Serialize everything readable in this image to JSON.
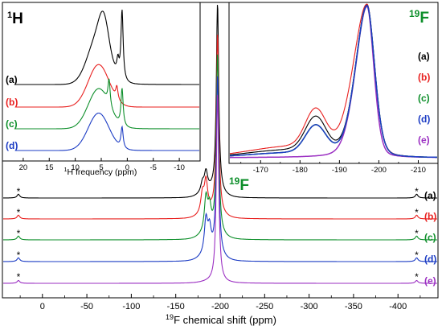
{
  "main": {
    "element_label": "19F",
    "xlabel_prefix": "19",
    "xlabel_text": "F chemical shift (ppm)",
    "x_ticks": [
      "0",
      "-50",
      "-100",
      "-150",
      "-200",
      "-250",
      "-300",
      "-350",
      "-400"
    ],
    "spinning_sideband_marker": "*"
  },
  "inset_1h": {
    "element_label": "1H",
    "xlabel_text": "H frequency (ppm)",
    "x_ticks": [
      "20",
      "15",
      "10",
      "5",
      "0",
      "-5",
      "-10"
    ]
  },
  "inset_19f": {
    "element_label": "19F",
    "x_ticks": [
      "-170",
      "-180",
      "-190",
      "-200",
      "-210"
    ]
  },
  "chart_data": [
    {
      "type": "line",
      "panel": "main",
      "title": "",
      "xlabel": "19F chemical shift (ppm)",
      "ylabel": "",
      "xlim": [
        45,
        -445
      ],
      "x_reversed": true,
      "grid": false,
      "legend": "right of each trace",
      "series": [
        {
          "name": "(a)",
          "color": "#000000",
          "peaks": [
            {
              "x": -197,
              "height": 1.0
            },
            {
              "x": -184,
              "height": 0.1
            },
            {
              "x": -180,
              "height": 0.05
            },
            {
              "x": 27,
              "height": 0.02
            },
            {
              "x": -421,
              "height": 0.02
            }
          ]
        },
        {
          "name": "(b)",
          "color": "#e8201f",
          "peaks": [
            {
              "x": -197,
              "height": 0.95
            },
            {
              "x": -184,
              "height": 0.16
            },
            {
              "x": -180,
              "height": 0.1
            },
            {
              "x": 27,
              "height": 0.02
            },
            {
              "x": -421,
              "height": 0.02
            }
          ]
        },
        {
          "name": "(c)",
          "color": "#0e8f2b",
          "peaks": [
            {
              "x": -197,
              "height": 0.95
            },
            {
              "x": -184,
              "height": 0.18
            },
            {
              "x": -188,
              "height": 0.12
            },
            {
              "x": 27,
              "height": 0.02
            },
            {
              "x": -421,
              "height": 0.02
            }
          ]
        },
        {
          "name": "(d)",
          "color": "#1c3cc4",
          "peaks": [
            {
              "x": -197,
              "height": 0.95
            },
            {
              "x": -184,
              "height": 0.18
            },
            {
              "x": -188,
              "height": 0.12
            },
            {
              "x": 27,
              "height": 0.02
            },
            {
              "x": -421,
              "height": 0.02
            }
          ]
        },
        {
          "name": "(e)",
          "color": "#9b2fc2",
          "peaks": [
            {
              "x": -197,
              "height": 1.0
            },
            {
              "x": 27,
              "height": 0.015
            },
            {
              "x": -421,
              "height": 0.015
            }
          ]
        }
      ]
    },
    {
      "type": "line",
      "panel": "inset 1H",
      "title": "",
      "xlabel": "1H frequency (ppm)",
      "ylabel": "",
      "xlim": [
        24,
        -14
      ],
      "x_reversed": true,
      "grid": false,
      "legend": "left of each trace",
      "series": [
        {
          "name": "(a)",
          "color": "#000000",
          "peaks": [
            {
              "x": 5.5,
              "height": 1.0
            },
            {
              "x": 4.5,
              "height": 0.55
            },
            {
              "x": 1.8,
              "height": 0.3
            },
            {
              "x": 1.0,
              "height": 1.4
            }
          ]
        },
        {
          "name": "(b)",
          "color": "#e8201f",
          "peaks": [
            {
              "x": 5.5,
              "height": 0.85
            },
            {
              "x": 2.0,
              "height": 0.25
            }
          ]
        },
        {
          "name": "(c)",
          "color": "#0e8f2b",
          "peaks": [
            {
              "x": 5.5,
              "height": 0.85
            },
            {
              "x": 3.5,
              "height": 0.55
            },
            {
              "x": 1.0,
              "height": 0.8
            }
          ]
        },
        {
          "name": "(d)",
          "color": "#1c3cc4",
          "peaks": [
            {
              "x": 5.5,
              "height": 0.8
            },
            {
              "x": 1.0,
              "height": 0.45
            }
          ]
        }
      ]
    },
    {
      "type": "line",
      "panel": "inset 19F",
      "title": "",
      "xlabel": "",
      "ylabel": "",
      "xlim": [
        -162,
        -215
      ],
      "x_reversed": true,
      "grid": false,
      "legend": "right of plot",
      "series": [
        {
          "name": "(a)",
          "color": "#000000",
          "peaks": [
            {
              "x": -197,
              "height": 1.0
            },
            {
              "x": -184,
              "height": 0.22
            }
          ]
        },
        {
          "name": "(b)",
          "color": "#e8201f",
          "peaks": [
            {
              "x": -197,
              "height": 1.0
            },
            {
              "x": -184,
              "height": 0.25
            }
          ]
        },
        {
          "name": "(c)",
          "color": "#0e8f2b",
          "peaks": [
            {
              "x": -197,
              "height": 1.0
            },
            {
              "x": -184,
              "height": 0.18
            }
          ]
        },
        {
          "name": "(d)",
          "color": "#1c3cc4",
          "peaks": [
            {
              "x": -197,
              "height": 1.0
            },
            {
              "x": -184,
              "height": 0.18
            }
          ]
        },
        {
          "name": "(e)",
          "color": "#9b2fc2",
          "peaks": [
            {
              "x": -197,
              "height": 1.0
            }
          ]
        }
      ]
    }
  ]
}
